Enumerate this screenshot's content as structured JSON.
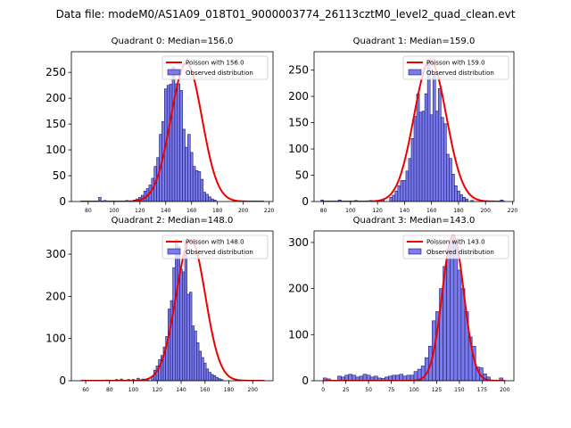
{
  "figure": {
    "suptitle": "Data file: modeM0/AS1A09_018T01_9000003774_26113cztM0_level2_quad_clean.evt"
  },
  "colors": {
    "fit": "#ee0000",
    "bar_fill": "#7b7bf0",
    "bar_edge": "#1a1a66",
    "axes": "#000000"
  },
  "chart_data": [
    {
      "type": "bar",
      "title": "Quadrant 0: Median=156.0",
      "legend": [
        "Poisson with 156.0",
        "Observed distribution"
      ],
      "legend_position": "top-right",
      "xlim": [
        67,
        223
      ],
      "ylim": [
        0,
        290
      ],
      "xticks": [
        80,
        100,
        120,
        140,
        160,
        180,
        200,
        220
      ],
      "yticks": [
        0,
        50,
        100,
        150,
        200,
        250
      ],
      "bins": [
        {
          "x": 89,
          "v": 8
        },
        {
          "x": 93,
          "v": 2
        },
        {
          "x": 104,
          "v": 1
        },
        {
          "x": 110,
          "v": 2
        },
        {
          "x": 116,
          "v": 3
        },
        {
          "x": 118,
          "v": 5
        },
        {
          "x": 120,
          "v": 8
        },
        {
          "x": 122,
          "v": 12
        },
        {
          "x": 124,
          "v": 20
        },
        {
          "x": 126,
          "v": 25
        },
        {
          "x": 128,
          "v": 32
        },
        {
          "x": 130,
          "v": 45
        },
        {
          "x": 132,
          "v": 68
        },
        {
          "x": 134,
          "v": 85
        },
        {
          "x": 136,
          "v": 130
        },
        {
          "x": 138,
          "v": 155
        },
        {
          "x": 140,
          "v": 218
        },
        {
          "x": 142,
          "v": 225
        },
        {
          "x": 144,
          "v": 227
        },
        {
          "x": 146,
          "v": 260
        },
        {
          "x": 148,
          "v": 228
        },
        {
          "x": 150,
          "v": 228
        },
        {
          "x": 152,
          "v": 215
        },
        {
          "x": 154,
          "v": 140
        },
        {
          "x": 156,
          "v": 105
        },
        {
          "x": 158,
          "v": 130
        },
        {
          "x": 160,
          "v": 95
        },
        {
          "x": 162,
          "v": 68
        },
        {
          "x": 164,
          "v": 60
        },
        {
          "x": 166,
          "v": 58
        },
        {
          "x": 168,
          "v": 43
        },
        {
          "x": 170,
          "v": 18
        },
        {
          "x": 172,
          "v": 14
        },
        {
          "x": 174,
          "v": 9
        },
        {
          "x": 176,
          "v": 5
        },
        {
          "x": 178,
          "v": 3
        }
      ],
      "fit": {
        "mean": 156.0,
        "sigma": 12.0,
        "peak": 268,
        "x_range": [
          74,
          216
        ],
        "scale_factor": 0.8
      }
    },
    {
      "type": "bar",
      "title": "Quadrant 1: Median=159.0",
      "legend": [
        "Poisson with 159.0",
        "Observed distribution"
      ],
      "legend_position": "top-right",
      "xlim": [
        73,
        221
      ],
      "ylim": [
        0,
        285
      ],
      "xticks": [
        80,
        100,
        120,
        140,
        160,
        180,
        200,
        220
      ],
      "yticks": [
        0,
        50,
        100,
        150,
        200,
        250
      ],
      "bins": [
        {
          "x": 79,
          "v": 3
        },
        {
          "x": 92,
          "v": 3
        },
        {
          "x": 104,
          "v": 2
        },
        {
          "x": 115,
          "v": 2
        },
        {
          "x": 124,
          "v": 3
        },
        {
          "x": 130,
          "v": 8
        },
        {
          "x": 132,
          "v": 12
        },
        {
          "x": 134,
          "v": 20
        },
        {
          "x": 136,
          "v": 30
        },
        {
          "x": 138,
          "v": 40
        },
        {
          "x": 140,
          "v": 40
        },
        {
          "x": 142,
          "v": 58
        },
        {
          "x": 144,
          "v": 82
        },
        {
          "x": 146,
          "v": 120
        },
        {
          "x": 148,
          "v": 162
        },
        {
          "x": 150,
          "v": 205
        },
        {
          "x": 152,
          "v": 170
        },
        {
          "x": 154,
          "v": 172
        },
        {
          "x": 156,
          "v": 205
        },
        {
          "x": 158,
          "v": 268
        },
        {
          "x": 160,
          "v": 165
        },
        {
          "x": 162,
          "v": 242
        },
        {
          "x": 164,
          "v": 172
        },
        {
          "x": 166,
          "v": 215
        },
        {
          "x": 168,
          "v": 160
        },
        {
          "x": 170,
          "v": 148
        },
        {
          "x": 172,
          "v": 90
        },
        {
          "x": 174,
          "v": 82
        },
        {
          "x": 176,
          "v": 52
        },
        {
          "x": 178,
          "v": 30
        },
        {
          "x": 180,
          "v": 20
        },
        {
          "x": 182,
          "v": 13
        },
        {
          "x": 184,
          "v": 8
        },
        {
          "x": 186,
          "v": 5
        },
        {
          "x": 190,
          "v": 2
        },
        {
          "x": 212,
          "v": 3
        }
      ],
      "fit": {
        "mean": 159.0,
        "sigma": 12.0,
        "peak": 268,
        "x_range": [
          78,
          214
        ],
        "scale_factor": 0.8
      }
    },
    {
      "type": "bar",
      "title": "Quadrant 2: Median=148.0",
      "legend": [
        "Poisson with 148.0",
        "Observed distribution"
      ],
      "legend_position": "top-right",
      "xlim": [
        48,
        217
      ],
      "ylim": [
        0,
        355
      ],
      "xticks": [
        60,
        80,
        100,
        120,
        140,
        160,
        180,
        200
      ],
      "yticks": [
        0,
        100,
        200,
        300
      ],
      "bins": [
        {
          "x": 78,
          "v": 2
        },
        {
          "x": 86,
          "v": 3
        },
        {
          "x": 90,
          "v": 4
        },
        {
          "x": 96,
          "v": 3
        },
        {
          "x": 100,
          "v": 3
        },
        {
          "x": 104,
          "v": 6
        },
        {
          "x": 108,
          "v": 4
        },
        {
          "x": 112,
          "v": 5
        },
        {
          "x": 116,
          "v": 10
        },
        {
          "x": 118,
          "v": 25
        },
        {
          "x": 120,
          "v": 35
        },
        {
          "x": 122,
          "v": 50
        },
        {
          "x": 124,
          "v": 60
        },
        {
          "x": 126,
          "v": 80
        },
        {
          "x": 128,
          "v": 105
        },
        {
          "x": 130,
          "v": 170
        },
        {
          "x": 132,
          "v": 190
        },
        {
          "x": 134,
          "v": 268
        },
        {
          "x": 136,
          "v": 335
        },
        {
          "x": 138,
          "v": 318
        },
        {
          "x": 140,
          "v": 265
        },
        {
          "x": 142,
          "v": 258
        },
        {
          "x": 144,
          "v": 330
        },
        {
          "x": 146,
          "v": 205
        },
        {
          "x": 148,
          "v": 210
        },
        {
          "x": 150,
          "v": 130
        },
        {
          "x": 152,
          "v": 118
        },
        {
          "x": 154,
          "v": 90
        },
        {
          "x": 156,
          "v": 70
        },
        {
          "x": 158,
          "v": 55
        },
        {
          "x": 160,
          "v": 42
        },
        {
          "x": 162,
          "v": 28
        },
        {
          "x": 164,
          "v": 20
        },
        {
          "x": 166,
          "v": 15
        },
        {
          "x": 168,
          "v": 12
        },
        {
          "x": 170,
          "v": 8
        },
        {
          "x": 172,
          "v": 5
        },
        {
          "x": 174,
          "v": 3
        }
      ],
      "fit": {
        "mean": 148.0,
        "sigma": 12.2,
        "peak": 335,
        "x_range": [
          56,
          210
        ],
        "scale_factor": 0.77
      }
    },
    {
      "type": "bar",
      "title": "Quadrant 3: Median=143.0",
      "legend": [
        "Poisson with 143.0",
        "Observed distribution"
      ],
      "legend_position": "top-right",
      "xlim": [
        -10,
        210
      ],
      "ylim": [
        0,
        325
      ],
      "xticks": [
        0,
        25,
        50,
        75,
        100,
        125,
        150,
        175,
        200
      ],
      "yticks": [
        0,
        100,
        200,
        300
      ],
      "bins": [
        {
          "x": 2,
          "v": 6
        },
        {
          "x": 6,
          "v": 4
        },
        {
          "x": 18,
          "v": 10
        },
        {
          "x": 22,
          "v": 8
        },
        {
          "x": 26,
          "v": 12
        },
        {
          "x": 30,
          "v": 14
        },
        {
          "x": 34,
          "v": 12
        },
        {
          "x": 38,
          "v": 8
        },
        {
          "x": 42,
          "v": 10
        },
        {
          "x": 46,
          "v": 14
        },
        {
          "x": 50,
          "v": 12
        },
        {
          "x": 54,
          "v": 8
        },
        {
          "x": 58,
          "v": 10
        },
        {
          "x": 62,
          "v": 6
        },
        {
          "x": 66,
          "v": 5
        },
        {
          "x": 70,
          "v": 8
        },
        {
          "x": 74,
          "v": 10
        },
        {
          "x": 78,
          "v": 12
        },
        {
          "x": 82,
          "v": 12
        },
        {
          "x": 86,
          "v": 14
        },
        {
          "x": 90,
          "v": 10
        },
        {
          "x": 94,
          "v": 12
        },
        {
          "x": 98,
          "v": 12
        },
        {
          "x": 102,
          "v": 20
        },
        {
          "x": 106,
          "v": 25
        },
        {
          "x": 110,
          "v": 32
        },
        {
          "x": 114,
          "v": 50
        },
        {
          "x": 118,
          "v": 75
        },
        {
          "x": 122,
          "v": 130
        },
        {
          "x": 126,
          "v": 150
        },
        {
          "x": 130,
          "v": 200
        },
        {
          "x": 134,
          "v": 248
        },
        {
          "x": 138,
          "v": 285
        },
        {
          "x": 142,
          "v": 310
        },
        {
          "x": 146,
          "v": 300
        },
        {
          "x": 150,
          "v": 240
        },
        {
          "x": 154,
          "v": 200
        },
        {
          "x": 158,
          "v": 150
        },
        {
          "x": 162,
          "v": 95
        },
        {
          "x": 166,
          "v": 75
        },
        {
          "x": 170,
          "v": 30
        },
        {
          "x": 174,
          "v": 28
        },
        {
          "x": 178,
          "v": 15
        },
        {
          "x": 182,
          "v": 8
        },
        {
          "x": 196,
          "v": 6
        }
      ],
      "fit": {
        "mean": 143.0,
        "sigma": 11.9,
        "peak": 315,
        "x_range": [
          0,
          200
        ],
        "scale_factor": 0.77
      }
    }
  ]
}
